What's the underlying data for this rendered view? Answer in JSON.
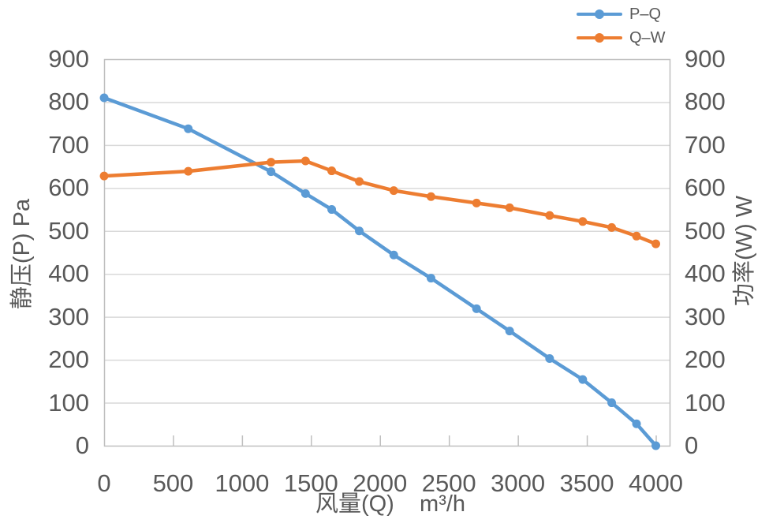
{
  "chart_data": {
    "type": "line",
    "title": "",
    "x": {
      "label": "风量(Q)    m³/h",
      "min": 0,
      "max": 4100,
      "tick_step": 500,
      "ticks": [
        0,
        500,
        1000,
        1500,
        2000,
        2500,
        3000,
        3500,
        4000
      ]
    },
    "y_left": {
      "label": "静压(P) Pa",
      "min": 0,
      "max": 900,
      "tick_step": 100,
      "ticks": [
        0,
        100,
        200,
        300,
        400,
        500,
        600,
        700,
        800,
        900
      ]
    },
    "y_right": {
      "label": "功率(W) W",
      "min": 0,
      "max": 900,
      "tick_step": 100,
      "ticks": [
        0,
        100,
        200,
        300,
        400,
        500,
        600,
        700,
        800,
        900
      ]
    },
    "grid": "horizontal",
    "legend_position": "top-right",
    "series": [
      {
        "name": "P–Q",
        "color": "#5B9BD5",
        "axis": "left",
        "marker": "circle",
        "x": [
          0,
          610,
          1210,
          1460,
          1650,
          1850,
          2100,
          2370,
          2700,
          2940,
          3230,
          3470,
          3680,
          3860,
          4000
        ],
        "values": [
          810,
          738,
          638,
          587,
          550,
          500,
          444,
          390,
          319,
          267,
          203,
          154,
          100,
          51,
          0
        ]
      },
      {
        "name": "Q–W",
        "color": "#ED7D31",
        "axis": "right",
        "marker": "circle",
        "x": [
          0,
          610,
          1210,
          1460,
          1650,
          1850,
          2100,
          2370,
          2700,
          2940,
          3230,
          3470,
          3680,
          3860,
          4000
        ],
        "values": [
          628,
          639,
          660,
          663,
          640,
          615,
          594,
          580,
          565,
          554,
          536,
          522,
          508,
          488,
          470
        ]
      }
    ],
    "colors": {
      "gridline": "#D9D9D9",
      "axis_line": "#BFBFBF",
      "text": "#595959",
      "background": "#FFFFFF"
    }
  }
}
